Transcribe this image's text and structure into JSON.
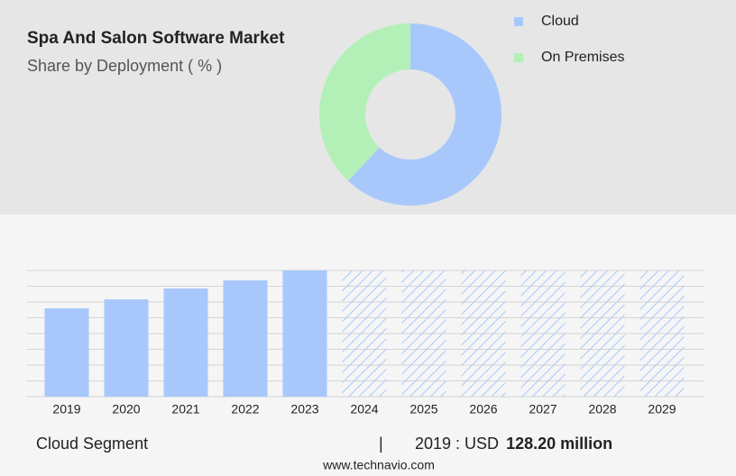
{
  "chart_data": [
    {
      "type": "pie",
      "title": "Spa And Salon Software Market",
      "subtitle": "Share by Deployment ( % )",
      "categories": [
        "Cloud",
        "On Premises"
      ],
      "values": [
        62,
        38
      ],
      "colors": [
        "#a8c8fc",
        "#b3f0b8"
      ],
      "donut": true
    },
    {
      "type": "bar",
      "categories": [
        "2019",
        "2020",
        "2021",
        "2022",
        "2023",
        "2024",
        "2025",
        "2026",
        "2027",
        "2028",
        "2029"
      ],
      "values": [
        128.2,
        141.3,
        157,
        168.8,
        183.2,
        null,
        null,
        null,
        null,
        null,
        null
      ],
      "color": "#a8c8fc",
      "ylim": [
        0,
        183.2
      ],
      "grid": true
    }
  ],
  "footer": {
    "segment": "Cloud Segment",
    "separator": "|",
    "year_label": "2019 : USD",
    "amount": "128.20 million",
    "source": "www.technavio.com"
  }
}
